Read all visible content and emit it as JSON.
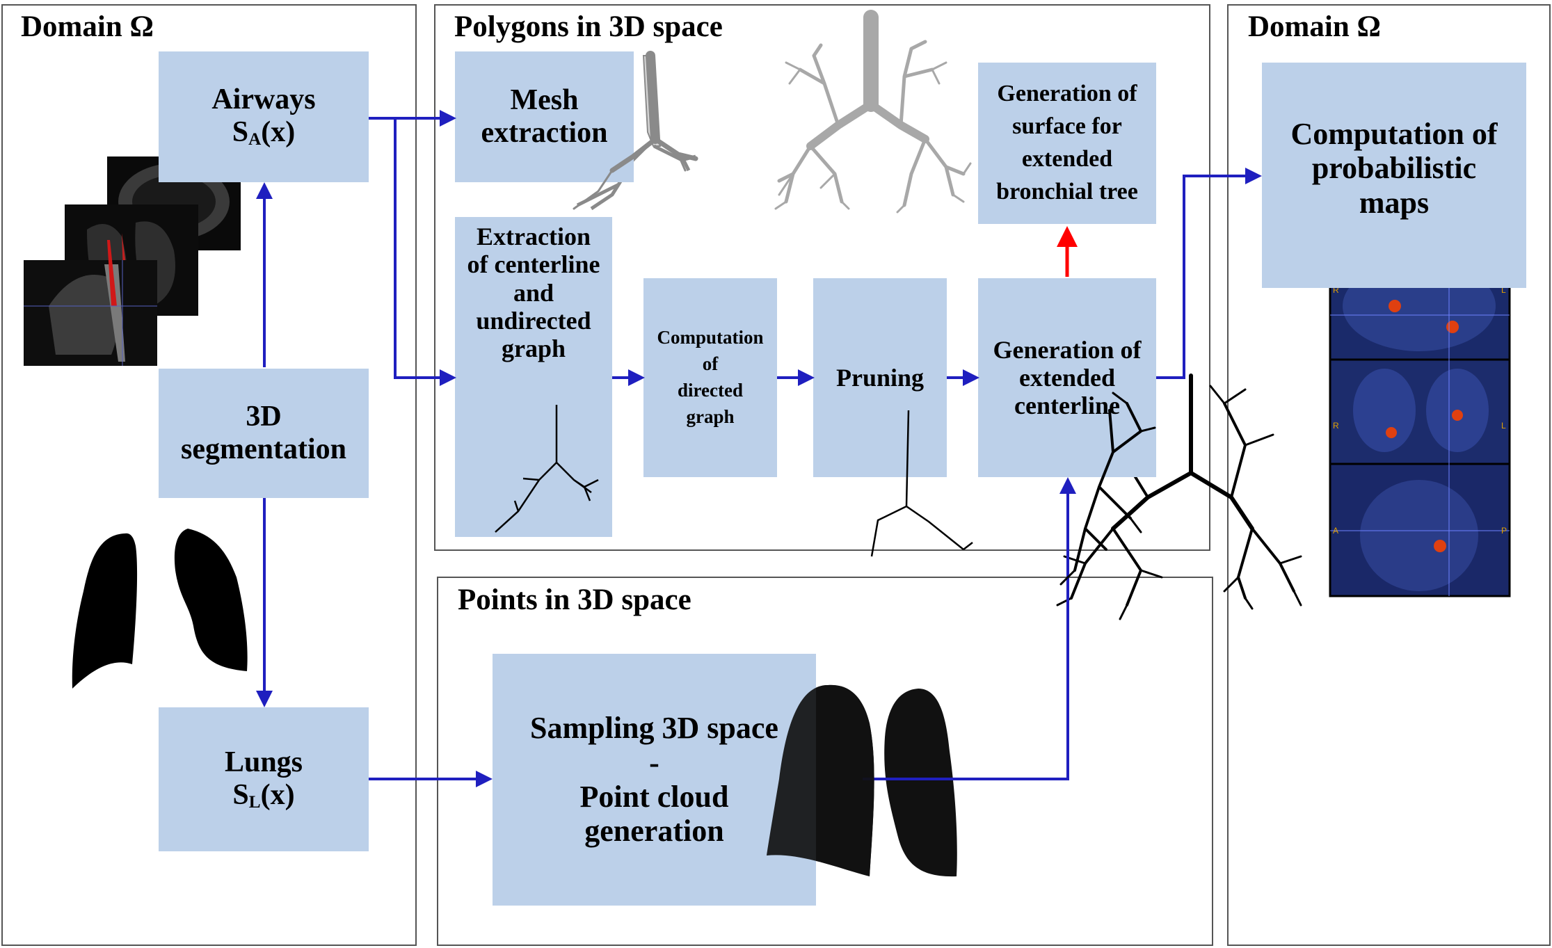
{
  "panels": {
    "left_title": "Domain Ω",
    "middle_top_title": "Polygons in 3D space",
    "middle_bottom_title": "Points in 3D space",
    "right_title": "Domain Ω"
  },
  "boxes": {
    "airways": {
      "line1": "Airways",
      "s": "S",
      "sub": "A",
      "arg": "(x)"
    },
    "segmentation": {
      "line1": "3D",
      "line2": "segmentation"
    },
    "lungs": {
      "line1": "Lungs",
      "s": "S",
      "sub": "L",
      "arg": "(x)"
    },
    "mesh": {
      "line1": "Mesh",
      "line2": "extraction"
    },
    "centerline": {
      "line1": "Extraction",
      "line2": "of centerline",
      "line3": "and",
      "line4": "undirected",
      "line5": "graph"
    },
    "directed": {
      "line1": "Computation",
      "line2": "of",
      "line3": "directed",
      "line4": "graph"
    },
    "pruning": {
      "line1": "Pruning"
    },
    "ext_centerline": {
      "line1": "Generation of",
      "line2": "extended",
      "line3": "centerline"
    },
    "surface": {
      "line1": "Generation of",
      "line2": "surface for",
      "line3": "extended",
      "line4": "bronchial tree"
    },
    "sampling": {
      "line1": "Sampling 3D space",
      "line2": "-",
      "line3": "Point cloud",
      "line4": "generation"
    },
    "probabilistic": {
      "line1": "Computation of",
      "line2": "probabilistic",
      "line3": "maps"
    }
  },
  "ct_labels": {
    "r": "R",
    "l": "L",
    "a": "A",
    "p": "P"
  },
  "colors": {
    "box": "#bcd0e9",
    "arrow": "#1f1fbf",
    "arrow_red": "#ff0000",
    "border": "#555555"
  },
  "icons": [
    "ct-scan-stack-icon",
    "lung-mask-icon",
    "airway-mesh-icon",
    "bronchial-tree-icon",
    "centerline-graph-icon",
    "point-cloud-icon",
    "probability-map-icon"
  ]
}
